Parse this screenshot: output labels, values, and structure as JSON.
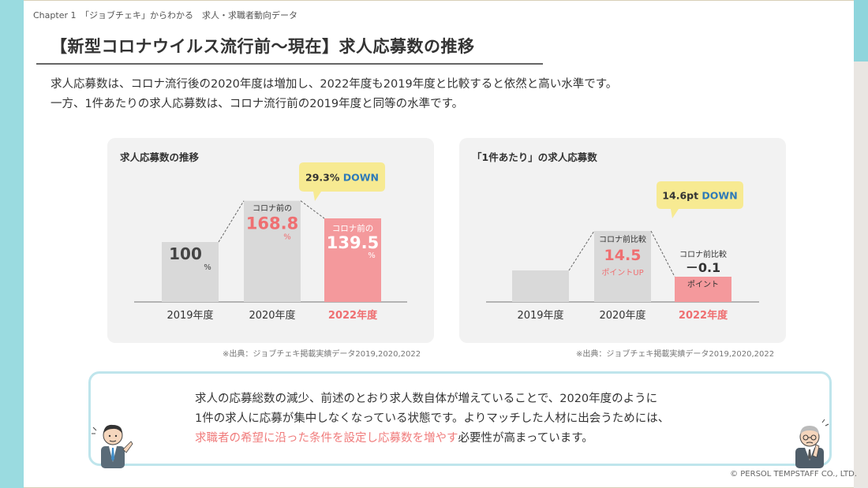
{
  "header": {
    "chapter": "Chapter 1　「ジョブチェキ」からわかる　求人・求職者動向データ"
  },
  "title": "【新型コロナウイルス流行前～現在】求人応募数の推移",
  "description": [
    "求人応募数は、コロナ流行後の2020年度は増加し、2022年度も2019年度と比較すると依然と高い水準です。",
    "一方、1件あたりの求人応募数は、コロナ流行前の2019年度と同等の水準です。"
  ],
  "colors": {
    "bar_gray": "#d9d9d9",
    "bar_highlight": "#f4999c",
    "accent_red": "#ef6f71",
    "callout_yellow": "#f7ea92",
    "down_blue": "#2e7ab8",
    "teal": "#9adbe0"
  },
  "chart_data": [
    {
      "type": "bar",
      "title": "求人応募数の推移",
      "categories": [
        "2019年度",
        "2020年度",
        "2022年度"
      ],
      "values": [
        100,
        168.8,
        139.5
      ],
      "units": "%",
      "bar_labels": [
        {
          "prefix": "",
          "value": "100",
          "unit": "%"
        },
        {
          "prefix": "コロナ前の",
          "value": "168.8",
          "unit": "%"
        },
        {
          "prefix": "コロナ前の",
          "value": "139.5",
          "unit": "%"
        }
      ],
      "callout": {
        "value": "29.3%",
        "label": "DOWN"
      },
      "source": "※出典：ジョブチェキ掲載実績データ2019,2020,2022"
    },
    {
      "type": "bar",
      "title": "「1件あたり」の求人応募数",
      "categories": [
        "2019年度",
        "2020年度",
        "2022年度"
      ],
      "relative_values": [
        0,
        14.5,
        -0.1
      ],
      "bar_labels": [
        {
          "prefix": "",
          "value": "",
          "unit": ""
        },
        {
          "prefix": "コロナ前比較",
          "value": "14.5",
          "unit": "ポイントUP"
        },
        {
          "prefix": "コロナ前比較",
          "value": "－0.1",
          "unit": "ポイント"
        }
      ],
      "callout": {
        "value": "14.6pt",
        "label": "DOWN"
      },
      "source": "※出典：ジョブチェキ掲載実績データ2019,2020,2022"
    }
  ],
  "callout": {
    "line1": "求人の応募総数の減少、前述のとおり求人数自体が増えていることで、2020年度のように",
    "line2": "1件の求人に応募が集中しなくなっている状態です。よりマッチした人材に出会うためには、",
    "line3_highlight": "求職者の希望に沿った条件を設定し応募数を増やす",
    "line3_rest": "必要性が高まっています。"
  },
  "footer": {
    "copyright": "© PERSOL TEMPSTAFF CO., LTD."
  }
}
